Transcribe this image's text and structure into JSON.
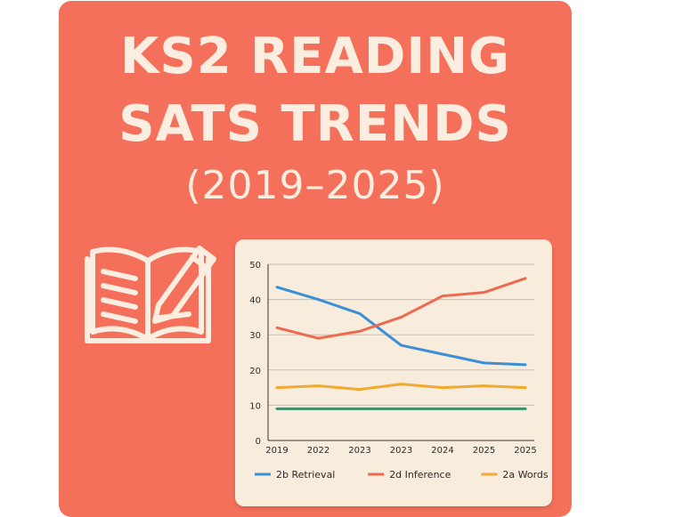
{
  "header": {
    "title_line1": "KS2 READING",
    "title_line2": "SATS TRENDS",
    "title_line3": "(2019–2025)"
  },
  "icon": "book-pencil-icon",
  "colors": {
    "background": "#f4705a",
    "title": "#fbeee0",
    "panel": "#f8ecdd"
  },
  "chart_data": {
    "type": "line",
    "categories": [
      "2019",
      "2022",
      "2023",
      "2023",
      "2024",
      "2025",
      "2025"
    ],
    "ylim": [
      0,
      50
    ],
    "yticks": [
      0,
      10,
      20,
      30,
      40,
      50
    ],
    "grid": true,
    "legend_position": "bottom",
    "series": [
      {
        "name": "2b Retrieval",
        "color": "#3a8fd6",
        "values": [
          43.5,
          40,
          36,
          27,
          24.5,
          22,
          21.5
        ]
      },
      {
        "name": "2d Inference",
        "color": "#ee6a4f",
        "values": [
          32,
          29,
          31,
          35,
          41,
          42,
          46
        ]
      },
      {
        "name": "2a Words",
        "color": "#f2a92f",
        "values": [
          15,
          15.5,
          14.5,
          16,
          15,
          15.5,
          15
        ]
      },
      {
        "name": "",
        "color": "#3f8f6e",
        "values": [
          9,
          9,
          9,
          9,
          9,
          9,
          9
        ]
      }
    ]
  }
}
